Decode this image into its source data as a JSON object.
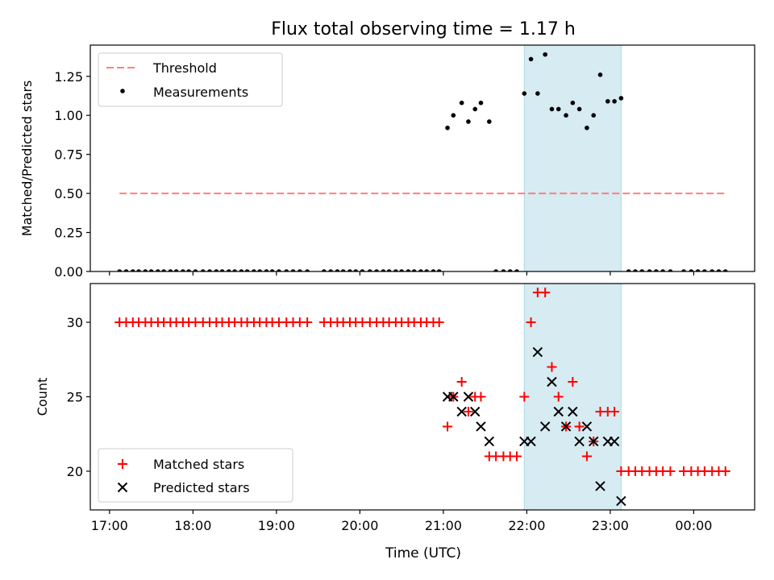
{
  "chart_data": {
    "type": "scatter",
    "title": "Flux total observing time = 1.17 h",
    "xlabel": "Time (UTC)",
    "x_ticks": [
      "17:00",
      "18:00",
      "19:00",
      "20:00",
      "21:00",
      "22:00",
      "23:00",
      "00:00"
    ],
    "highlight_span": {
      "start": 21.97,
      "end": 23.13,
      "color": "#add8e6"
    },
    "colors": {
      "threshold": "#ff7f7f",
      "measurement": "#000000",
      "matched": "#ff0000",
      "predicted": "#000000",
      "span": "#add8e6"
    },
    "panels": [
      {
        "id": "ratio",
        "ylabel": "Matched/Predicted stars",
        "ylim": [
          0,
          1.45
        ],
        "y_ticks": [
          0.0,
          0.25,
          0.5,
          0.75,
          1.0,
          1.25
        ],
        "y_tick_labels": [
          "0.00",
          "0.25",
          "0.50",
          "0.75",
          "1.00",
          "1.25"
        ],
        "legend_position": "upper-left",
        "legend": {
          "threshold": "Threshold",
          "measurements": "Measurements"
        },
        "threshold": {
          "value": 0.5,
          "x_start": 17.12,
          "x_end": 24.38
        },
        "measurements": [
          [
            17.12,
            0
          ],
          [
            17.2,
            0
          ],
          [
            17.28,
            0
          ],
          [
            17.35,
            0
          ],
          [
            17.43,
            0
          ],
          [
            17.5,
            0
          ],
          [
            17.58,
            0
          ],
          [
            17.65,
            0
          ],
          [
            17.73,
            0
          ],
          [
            17.8,
            0
          ],
          [
            17.88,
            0
          ],
          [
            17.95,
            0
          ],
          [
            18.03,
            0
          ],
          [
            18.12,
            0
          ],
          [
            18.2,
            0
          ],
          [
            18.28,
            0
          ],
          [
            18.35,
            0
          ],
          [
            18.43,
            0
          ],
          [
            18.5,
            0
          ],
          [
            18.58,
            0
          ],
          [
            18.65,
            0
          ],
          [
            18.73,
            0
          ],
          [
            18.8,
            0
          ],
          [
            18.88,
            0
          ],
          [
            18.95,
            0
          ],
          [
            19.03,
            0
          ],
          [
            19.12,
            0
          ],
          [
            19.2,
            0
          ],
          [
            19.28,
            0
          ],
          [
            19.37,
            0
          ],
          [
            19.57,
            0
          ],
          [
            19.65,
            0
          ],
          [
            19.73,
            0
          ],
          [
            19.8,
            0
          ],
          [
            19.88,
            0
          ],
          [
            19.95,
            0
          ],
          [
            20.03,
            0
          ],
          [
            20.12,
            0
          ],
          [
            20.2,
            0
          ],
          [
            20.28,
            0
          ],
          [
            20.35,
            0
          ],
          [
            20.43,
            0
          ],
          [
            20.5,
            0
          ],
          [
            20.58,
            0
          ],
          [
            20.65,
            0
          ],
          [
            20.73,
            0
          ],
          [
            20.8,
            0
          ],
          [
            20.88,
            0
          ],
          [
            20.95,
            0
          ],
          [
            21.05,
            0.92
          ],
          [
            21.12,
            1.0
          ],
          [
            21.22,
            1.08
          ],
          [
            21.3,
            0.96
          ],
          [
            21.38,
            1.04
          ],
          [
            21.45,
            1.08
          ],
          [
            21.55,
            0.96
          ],
          [
            21.63,
            0
          ],
          [
            21.72,
            0
          ],
          [
            21.8,
            0
          ],
          [
            21.88,
            0
          ],
          [
            21.97,
            1.14
          ],
          [
            22.05,
            1.36
          ],
          [
            22.13,
            1.14
          ],
          [
            22.22,
            1.39
          ],
          [
            22.3,
            1.04
          ],
          [
            22.38,
            1.04
          ],
          [
            22.47,
            1.0
          ],
          [
            22.55,
            1.08
          ],
          [
            22.63,
            1.04
          ],
          [
            22.72,
            0.92
          ],
          [
            22.8,
            1.0
          ],
          [
            22.88,
            1.26
          ],
          [
            22.97,
            1.09
          ],
          [
            23.05,
            1.09
          ],
          [
            23.13,
            1.11
          ],
          [
            23.22,
            0
          ],
          [
            23.3,
            0
          ],
          [
            23.38,
            0
          ],
          [
            23.47,
            0
          ],
          [
            23.55,
            0
          ],
          [
            23.63,
            0
          ],
          [
            23.72,
            0
          ],
          [
            23.88,
            0
          ],
          [
            23.97,
            0
          ],
          [
            24.05,
            0
          ],
          [
            24.13,
            0
          ],
          [
            24.22,
            0
          ],
          [
            24.3,
            0
          ],
          [
            24.38,
            0
          ]
        ]
      },
      {
        "id": "counts",
        "ylabel": "Count",
        "ylim": [
          17.4,
          32.6
        ],
        "y_ticks": [
          20,
          25,
          30
        ],
        "y_tick_labels": [
          "20",
          "25",
          "30"
        ],
        "legend_position": "lower-left",
        "legend": {
          "matched": "Matched stars",
          "predicted": "Predicted stars"
        },
        "matched": [
          [
            17.12,
            30
          ],
          [
            17.2,
            30
          ],
          [
            17.28,
            30
          ],
          [
            17.35,
            30
          ],
          [
            17.43,
            30
          ],
          [
            17.5,
            30
          ],
          [
            17.58,
            30
          ],
          [
            17.65,
            30
          ],
          [
            17.73,
            30
          ],
          [
            17.8,
            30
          ],
          [
            17.88,
            30
          ],
          [
            17.95,
            30
          ],
          [
            18.03,
            30
          ],
          [
            18.12,
            30
          ],
          [
            18.2,
            30
          ],
          [
            18.28,
            30
          ],
          [
            18.35,
            30
          ],
          [
            18.43,
            30
          ],
          [
            18.5,
            30
          ],
          [
            18.58,
            30
          ],
          [
            18.65,
            30
          ],
          [
            18.73,
            30
          ],
          [
            18.8,
            30
          ],
          [
            18.88,
            30
          ],
          [
            18.95,
            30
          ],
          [
            19.03,
            30
          ],
          [
            19.12,
            30
          ],
          [
            19.2,
            30
          ],
          [
            19.28,
            30
          ],
          [
            19.37,
            30
          ],
          [
            19.57,
            30
          ],
          [
            19.65,
            30
          ],
          [
            19.73,
            30
          ],
          [
            19.8,
            30
          ],
          [
            19.88,
            30
          ],
          [
            19.95,
            30
          ],
          [
            20.03,
            30
          ],
          [
            20.12,
            30
          ],
          [
            20.2,
            30
          ],
          [
            20.28,
            30
          ],
          [
            20.35,
            30
          ],
          [
            20.43,
            30
          ],
          [
            20.5,
            30
          ],
          [
            20.58,
            30
          ],
          [
            20.65,
            30
          ],
          [
            20.73,
            30
          ],
          [
            20.8,
            30
          ],
          [
            20.88,
            30
          ],
          [
            20.95,
            30
          ],
          [
            21.05,
            23
          ],
          [
            21.12,
            25
          ],
          [
            21.22,
            26
          ],
          [
            21.3,
            24
          ],
          [
            21.38,
            25
          ],
          [
            21.45,
            25
          ],
          [
            21.55,
            21
          ],
          [
            21.63,
            21
          ],
          [
            21.72,
            21
          ],
          [
            21.8,
            21
          ],
          [
            21.88,
            21
          ],
          [
            21.97,
            25
          ],
          [
            22.05,
            30
          ],
          [
            22.13,
            32
          ],
          [
            22.22,
            32
          ],
          [
            22.3,
            27
          ],
          [
            22.38,
            25
          ],
          [
            22.47,
            23
          ],
          [
            22.55,
            26
          ],
          [
            22.63,
            23
          ],
          [
            22.72,
            21
          ],
          [
            22.8,
            22
          ],
          [
            22.88,
            24
          ],
          [
            22.97,
            24
          ],
          [
            23.05,
            24
          ],
          [
            23.13,
            20
          ],
          [
            23.22,
            20
          ],
          [
            23.3,
            20
          ],
          [
            23.38,
            20
          ],
          [
            23.47,
            20
          ],
          [
            23.55,
            20
          ],
          [
            23.63,
            20
          ],
          [
            23.72,
            20
          ],
          [
            23.88,
            20
          ],
          [
            23.97,
            20
          ],
          [
            24.05,
            20
          ],
          [
            24.13,
            20
          ],
          [
            24.22,
            20
          ],
          [
            24.3,
            20
          ],
          [
            24.38,
            20
          ]
        ],
        "predicted": [
          [
            21.05,
            25
          ],
          [
            21.12,
            25
          ],
          [
            21.22,
            24
          ],
          [
            21.3,
            25
          ],
          [
            21.38,
            24
          ],
          [
            21.45,
            23
          ],
          [
            21.55,
            22
          ],
          [
            21.97,
            22
          ],
          [
            22.05,
            22
          ],
          [
            22.13,
            28
          ],
          [
            22.22,
            23
          ],
          [
            22.3,
            26
          ],
          [
            22.38,
            24
          ],
          [
            22.47,
            23
          ],
          [
            22.55,
            24
          ],
          [
            22.63,
            22
          ],
          [
            22.72,
            23
          ],
          [
            22.8,
            22
          ],
          [
            22.88,
            19
          ],
          [
            22.97,
            22
          ],
          [
            23.05,
            22
          ],
          [
            23.13,
            18
          ]
        ]
      }
    ]
  }
}
